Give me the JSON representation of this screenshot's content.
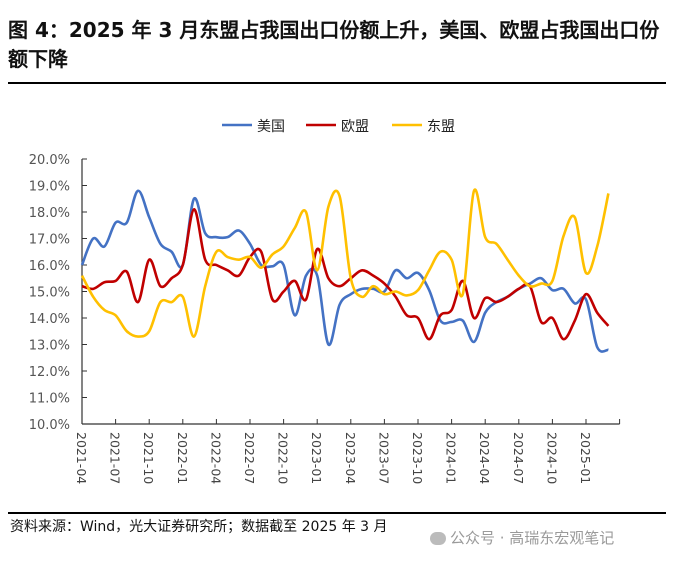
{
  "title": "图 4：2025 年 3 月东盟占我国出口份额上升，美国、欧盟占我国出口份额下降",
  "source": "资料来源：Wind，光大证券研究所；数据截至 2025 年 3 月",
  "watermark": "公众号 · 高瑞东宏观笔记",
  "chart_data": {
    "type": "line",
    "title": "",
    "xlabel": "",
    "ylabel": "",
    "ylim": [
      10,
      20
    ],
    "yticks": [
      "10.0%",
      "11.0%",
      "12.0%",
      "13.0%",
      "14.0%",
      "15.0%",
      "16.0%",
      "17.0%",
      "18.0%",
      "19.0%",
      "20.0%"
    ],
    "xticks": [
      "2021-04",
      "2021-07",
      "2021-10",
      "2022-01",
      "2022-04",
      "2022-07",
      "2022-10",
      "2023-01",
      "2023-04",
      "2023-07",
      "2023-10",
      "2024-01",
      "2024-04",
      "2024-07",
      "2024-10",
      "2025-01"
    ],
    "x_start": "2021-04",
    "x_end": "2025-03",
    "legend": "top",
    "grid": false,
    "series": [
      {
        "name": "美国",
        "color": "#4472C4",
        "values": [
          16.0,
          17.0,
          16.7,
          17.6,
          17.6,
          18.8,
          17.8,
          16.8,
          16.5,
          16.0,
          18.5,
          17.2,
          17.05,
          17.05,
          17.3,
          16.8,
          16.0,
          15.95,
          16.0,
          14.1,
          15.6,
          15.6,
          13.0,
          14.5,
          14.9,
          15.1,
          15.1,
          15.0,
          15.8,
          15.5,
          15.7,
          15.05,
          13.9,
          13.85,
          13.9,
          13.1,
          14.2,
          14.6,
          14.8,
          15.1,
          15.3,
          15.5,
          15.05,
          15.1,
          14.55,
          14.7,
          12.9,
          12.8
        ]
      },
      {
        "name": "欧盟",
        "color": "#C00000",
        "values": [
          15.2,
          15.1,
          15.35,
          15.4,
          15.75,
          14.6,
          16.2,
          15.2,
          15.5,
          16.0,
          18.1,
          16.2,
          16.0,
          15.8,
          15.6,
          16.3,
          16.5,
          14.7,
          15.0,
          15.4,
          14.7,
          16.6,
          15.5,
          15.2,
          15.5,
          15.8,
          15.6,
          15.3,
          14.8,
          14.1,
          14.0,
          13.2,
          14.1,
          14.3,
          15.4,
          14.0,
          14.75,
          14.6,
          14.8,
          15.1,
          15.2,
          13.85,
          14.0,
          13.2,
          13.9,
          14.9,
          14.2,
          13.7
        ]
      },
      {
        "name": "东盟",
        "color": "#FFC000",
        "values": [
          15.6,
          14.8,
          14.3,
          14.1,
          13.5,
          13.3,
          13.5,
          14.6,
          14.6,
          14.8,
          13.3,
          15.2,
          16.5,
          16.3,
          16.2,
          16.3,
          15.9,
          16.4,
          16.7,
          17.4,
          18.0,
          15.8,
          18.2,
          18.6,
          15.5,
          14.8,
          15.2,
          14.9,
          15.0,
          14.85,
          15.05,
          15.8,
          16.5,
          16.2,
          14.9,
          18.8,
          17.05,
          16.8,
          16.2,
          15.6,
          15.2,
          15.3,
          15.4,
          17.1,
          17.8,
          15.7,
          16.7,
          18.7
        ]
      }
    ]
  }
}
